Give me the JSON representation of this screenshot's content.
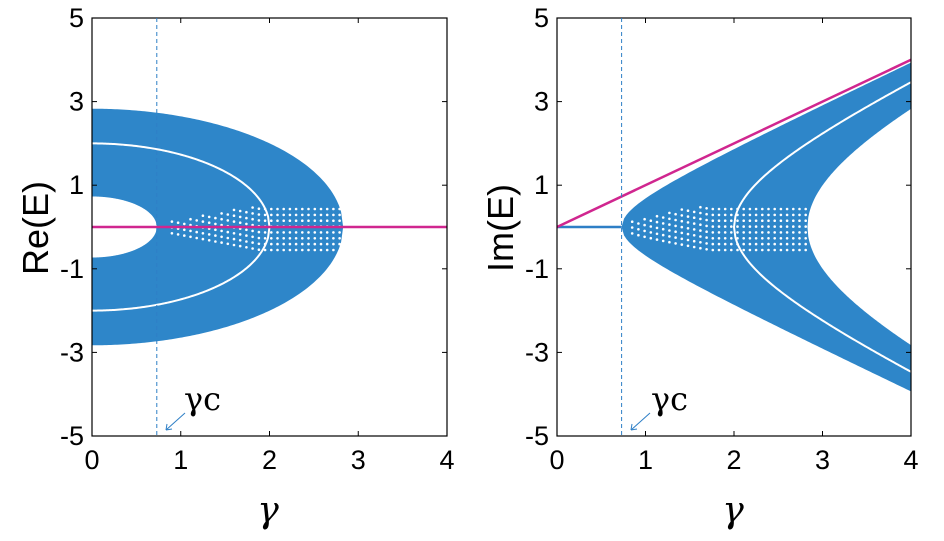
{
  "colors": {
    "band": "#2e86c9",
    "line_magenta": "#d0268f",
    "line_blue": "#2e7fc6",
    "gap_white": "#ffffff",
    "axis": "#000000"
  },
  "chart_data": [
    {
      "type": "area",
      "panel": "left",
      "ylabel": "Re(E)",
      "xlabel": "γ",
      "xlim": [
        0,
        4
      ],
      "ylim": [
        -5,
        5
      ],
      "xticks": [
        "0",
        "1",
        "2",
        "3",
        "4"
      ],
      "yticks": [
        "-5",
        "-3",
        "-1",
        "1",
        "3",
        "5"
      ],
      "annotation": "γc",
      "gamma_c": 0.73,
      "bands": {
        "outer_re_at_gamma0": 2.83,
        "inner_re_at_gamma0": 0.73,
        "white_arc_re_at_gamma0": 2.0,
        "outer_closes_at_gamma": 2.83,
        "white_arc_closes_at_gamma": 2.0
      },
      "series": [
        {
          "values": [
            [
              0,
              0
            ],
            [
              4,
              0
            ]
          ]
        }
      ]
    },
    {
      "type": "area",
      "panel": "right",
      "ylabel": "Im(E)",
      "xlabel": "γ",
      "xlim": [
        0,
        4
      ],
      "ylim": [
        -5,
        5
      ],
      "xticks": [
        "0",
        "1",
        "2",
        "3",
        "4"
      ],
      "yticks": [
        "-5",
        "-3",
        "-1",
        "1",
        "3",
        "5"
      ],
      "annotation": "γc",
      "gamma_c": 0.73,
      "bands": {
        "opens_at_gamma": 0.73,
        "inner_curve_opens_at_gamma": 2.0,
        "gap_opens_at_gamma": 2.83,
        "outer_im_at_gamma4": 4.0,
        "inner_im_at_gamma4": 2.83
      },
      "series": [
        {
          "values": [
            [
              0,
              0
            ],
            [
              4,
              4
            ]
          ]
        },
        {
          "values": [
            [
              0,
              0
            ],
            [
              0.73,
              0
            ]
          ]
        }
      ]
    }
  ]
}
